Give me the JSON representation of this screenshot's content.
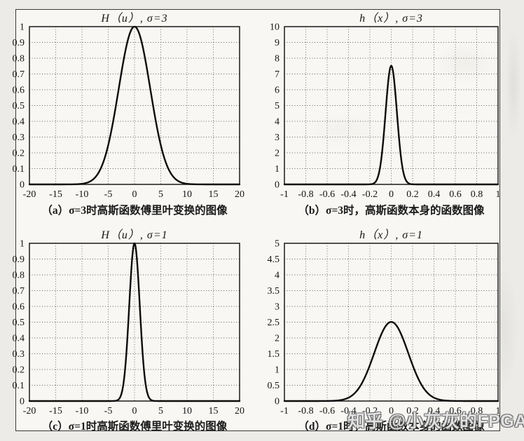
{
  "watermark": {
    "text": "知乎 @小灰灰的FPGA"
  },
  "chart_data": [
    {
      "type": "line",
      "panel": "a",
      "title": "H（u）, σ=3",
      "caption": "（a）σ=3时高斯函数傅里叶变换的图像",
      "x_range": [
        -20,
        20
      ],
      "y_range": [
        0,
        1
      ],
      "x_tick_values": [
        -20,
        -15,
        -10,
        -5,
        0,
        5,
        10,
        15,
        20
      ],
      "x_tick_labels": [
        "-20",
        "-15",
        "-10",
        "-5",
        "0",
        "5",
        "10",
        "15",
        "20"
      ],
      "y_tick_values": [
        0,
        0.1,
        0.2,
        0.3,
        0.4,
        0.5,
        0.6,
        0.7,
        0.8,
        0.9,
        1
      ],
      "y_tick_labels": [
        "0",
        "0.1",
        "0.2",
        "0.3",
        "0.4",
        "0.5",
        "0.6",
        "0.7",
        "0.8",
        "0.9",
        "1"
      ],
      "grid": "dotted",
      "legend": null,
      "curve": {
        "shape": "gaussian",
        "peak": 1,
        "center": 0,
        "sigma": 3
      },
      "key_points": {
        "x": [
          -10,
          -5,
          -3,
          0,
          3,
          5,
          10
        ],
        "y": [
          0.004,
          0.249,
          0.607,
          1.0,
          0.607,
          0.249,
          0.004
        ]
      }
    },
    {
      "type": "line",
      "panel": "b",
      "title": "h（x）, σ=3",
      "caption": "（b）σ=3时，高斯函数本身的函数图像",
      "x_range": [
        -1,
        1
      ],
      "y_range": [
        0,
        10
      ],
      "x_tick_values": [
        -1,
        -0.8,
        -0.6,
        -0.4,
        -0.2,
        0,
        0.2,
        0.4,
        0.6,
        0.8,
        1
      ],
      "x_tick_labels": [
        "-1",
        "-0.8",
        "-0.6",
        "-0.4",
        "-0.2",
        "0",
        "0.2",
        "0.4",
        "0.6",
        "0.8",
        "1"
      ],
      "y_tick_values": [
        0,
        1,
        2,
        3,
        4,
        5,
        6,
        7,
        8,
        9,
        10
      ],
      "y_tick_labels": [
        "0",
        "1",
        "2",
        "3",
        "4",
        "5",
        "6",
        "7",
        "8",
        "9",
        "10"
      ],
      "grid": "dotted",
      "legend": null,
      "curve": {
        "shape": "gaussian",
        "peak": 7.52,
        "center": 0,
        "sigma": 0.0531
      },
      "key_points": {
        "x": [
          -0.2,
          -0.1,
          -0.05,
          0,
          0.05,
          0.1,
          0.2
        ],
        "y": [
          0.006,
          1.27,
          4.82,
          7.52,
          4.82,
          1.27,
          0.006
        ]
      }
    },
    {
      "type": "line",
      "panel": "c",
      "title": "H（u）, σ=1",
      "caption": "（c）σ=1时高斯函数傅里叶变换的图像",
      "x_range": [
        -20,
        20
      ],
      "y_range": [
        0,
        1
      ],
      "x_tick_values": [
        -20,
        -15,
        -10,
        -5,
        0,
        5,
        10,
        15,
        20
      ],
      "x_tick_labels": [
        "-20",
        "-15",
        "-10",
        "-5",
        "0",
        "5",
        "10",
        "15",
        "20"
      ],
      "y_tick_values": [
        0,
        0.1,
        0.2,
        0.3,
        0.4,
        0.5,
        0.6,
        0.7,
        0.8,
        0.9,
        1
      ],
      "y_tick_labels": [
        "0",
        "0.1",
        "0.2",
        "0.3",
        "0.4",
        "0.5",
        "0.6",
        "0.7",
        "0.8",
        "0.9",
        "1"
      ],
      "grid": "dotted",
      "legend": null,
      "curve": {
        "shape": "gaussian",
        "peak": 1,
        "center": 0,
        "sigma": 1
      },
      "key_points": {
        "x": [
          -3,
          -2,
          -1,
          0,
          1,
          2,
          3
        ],
        "y": [
          0.011,
          0.135,
          0.607,
          1.0,
          0.607,
          0.135,
          0.011
        ]
      }
    },
    {
      "type": "line",
      "panel": "d",
      "title": "h（x）, σ=1",
      "caption": "（d）σ=1时，高斯函数本身的函数图像",
      "x_range": [
        -1,
        1
      ],
      "y_range": [
        0,
        5
      ],
      "x_tick_values": [
        -1,
        -0.8,
        -0.6,
        -0.4,
        -0.2,
        0,
        0.2,
        0.4,
        0.6,
        0.8,
        1
      ],
      "x_tick_labels": [
        "-1",
        "-0.8",
        "-0.6",
        "-0.4",
        "-0.2",
        "0",
        "0.2",
        "0.4",
        "0.6",
        "0.8",
        "1"
      ],
      "y_tick_values": [
        0,
        0.5,
        1,
        1.5,
        2,
        2.5,
        3,
        3.5,
        4,
        4.5,
        5
      ],
      "y_tick_labels": [
        "0",
        "0.5",
        "1",
        "1.5",
        "2",
        "2.5",
        "3",
        "3.5",
        "4",
        "4.5",
        "5"
      ],
      "grid": "dotted",
      "legend": null,
      "curve": {
        "shape": "gaussian",
        "peak": 2.507,
        "center": 0,
        "sigma": 0.1592
      },
      "key_points": {
        "x": [
          -0.4,
          -0.2,
          -0.1,
          0,
          0.1,
          0.2,
          0.4
        ],
        "y": [
          0.107,
          1.139,
          2.058,
          2.507,
          2.058,
          1.139,
          0.107
        ]
      }
    }
  ]
}
